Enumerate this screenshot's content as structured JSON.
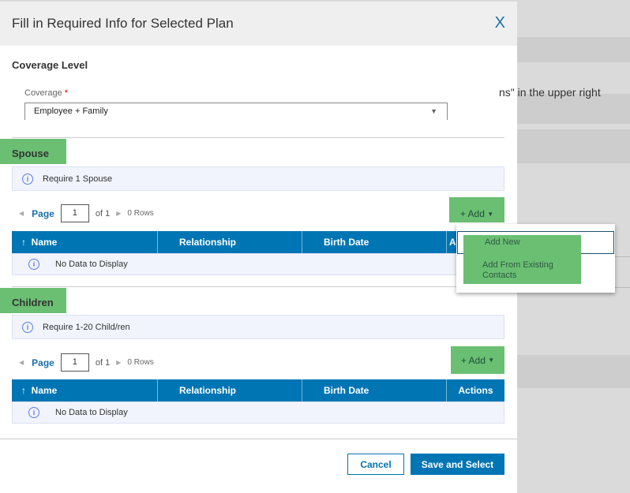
{
  "background": {
    "text": "ns\" in the upper right"
  },
  "modal": {
    "title": "Fill in Required Info for Selected Plan",
    "close_label": "X",
    "coverage_level": {
      "heading": "Coverage Level",
      "field_label": "Coverage",
      "required_mark": "*",
      "value": "Employee + Family"
    },
    "sections": [
      {
        "title": "Spouse",
        "info": "Require 1 Spouse",
        "pager": {
          "page_label": "Page",
          "page": "1",
          "of": "of 1",
          "rows": "0 Rows"
        },
        "add_label": "+ Add",
        "columns": [
          "Name",
          "Relationship",
          "Birth Date",
          "Actions"
        ],
        "empty": "No Data to Display"
      },
      {
        "title": "Children",
        "info": "Require 1-20 Child/ren",
        "pager": {
          "page_label": "Page",
          "page": "1",
          "of": "of 1",
          "rows": "0 Rows"
        },
        "add_label": "+ Add",
        "columns": [
          "Name",
          "Relationship",
          "Birth Date",
          "Actions"
        ],
        "empty": "No Data to Display"
      }
    ],
    "add_menu": [
      "Add New",
      "Add From Existing Contacts"
    ],
    "footer": {
      "cancel": "Cancel",
      "save": "Save and Select"
    }
  },
  "colors": {
    "primary": "#0075b4",
    "highlight": "#6abf73"
  }
}
